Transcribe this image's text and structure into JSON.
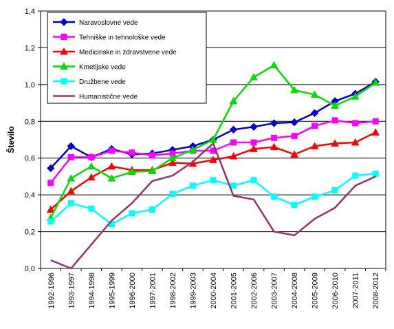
{
  "chart_data": {
    "type": "line",
    "title": "",
    "xlabel": "",
    "ylabel": "Število",
    "ylim": [
      0,
      1.4
    ],
    "ytick_labels": [
      "0,0",
      "0,2",
      "0,4",
      "0,6",
      "0,8",
      "1,0",
      "1,2",
      "1,4"
    ],
    "grid": "horizontal",
    "legend_position": "top-left",
    "categories": [
      "1992-1996",
      "1993-1997",
      "1994-1998",
      "1995-1999",
      "1996-2000",
      "1997-2001",
      "1998-2002",
      "1999-2003",
      "2000-2004",
      "2001-2005",
      "2002-2006",
      "2003-2007",
      "2004-2008",
      "2005-2009",
      "2006-2010",
      "2007-2011",
      "2008-2012"
    ],
    "series": [
      {
        "name": "Naravoslovne vede",
        "color": "#0000CC",
        "marker": "diamond",
        "values": [
          0.545,
          0.665,
          0.605,
          0.65,
          0.62,
          0.625,
          0.645,
          0.665,
          0.7,
          0.755,
          0.77,
          0.79,
          0.795,
          0.845,
          0.91,
          0.95,
          1.015
        ]
      },
      {
        "name": "Tehniške in tehnološke vede",
        "color": "#FF00FF",
        "marker": "square",
        "values": [
          0.465,
          0.605,
          0.605,
          0.64,
          0.63,
          0.615,
          0.625,
          0.64,
          0.64,
          0.685,
          0.685,
          0.71,
          0.72,
          0.775,
          0.805,
          0.79,
          0.8
        ]
      },
      {
        "name": "Medicinske in zdravstvene vede",
        "color": "#FF0000",
        "marker": "triangle",
        "values": [
          0.32,
          0.42,
          0.495,
          0.555,
          0.535,
          0.535,
          0.575,
          0.57,
          0.59,
          0.61,
          0.65,
          0.66,
          0.62,
          0.665,
          0.68,
          0.685,
          0.74
        ]
      },
      {
        "name": "Kmetijske vede",
        "color": "#00E000",
        "marker": "triangle",
        "values": [
          0.275,
          0.49,
          0.555,
          0.49,
          0.525,
          0.53,
          0.6,
          0.645,
          0.7,
          0.91,
          1.04,
          1.105,
          0.97,
          0.945,
          0.885,
          0.935,
          1.01
        ]
      },
      {
        "name": "Družbene vede",
        "color": "#00FFFF",
        "marker": "square",
        "values": [
          0.255,
          0.355,
          0.325,
          0.24,
          0.3,
          0.32,
          0.405,
          0.45,
          0.48,
          0.45,
          0.48,
          0.39,
          0.345,
          0.39,
          0.425,
          0.505,
          0.515
        ]
      },
      {
        "name": "Humanistične vede",
        "color": "#993366",
        "marker": "none",
        "values": [
          0.045,
          0.0,
          0.13,
          0.26,
          0.355,
          0.475,
          0.505,
          0.58,
          0.68,
          0.395,
          0.375,
          0.2,
          0.18,
          0.27,
          0.33,
          0.45,
          0.5
        ]
      }
    ]
  }
}
